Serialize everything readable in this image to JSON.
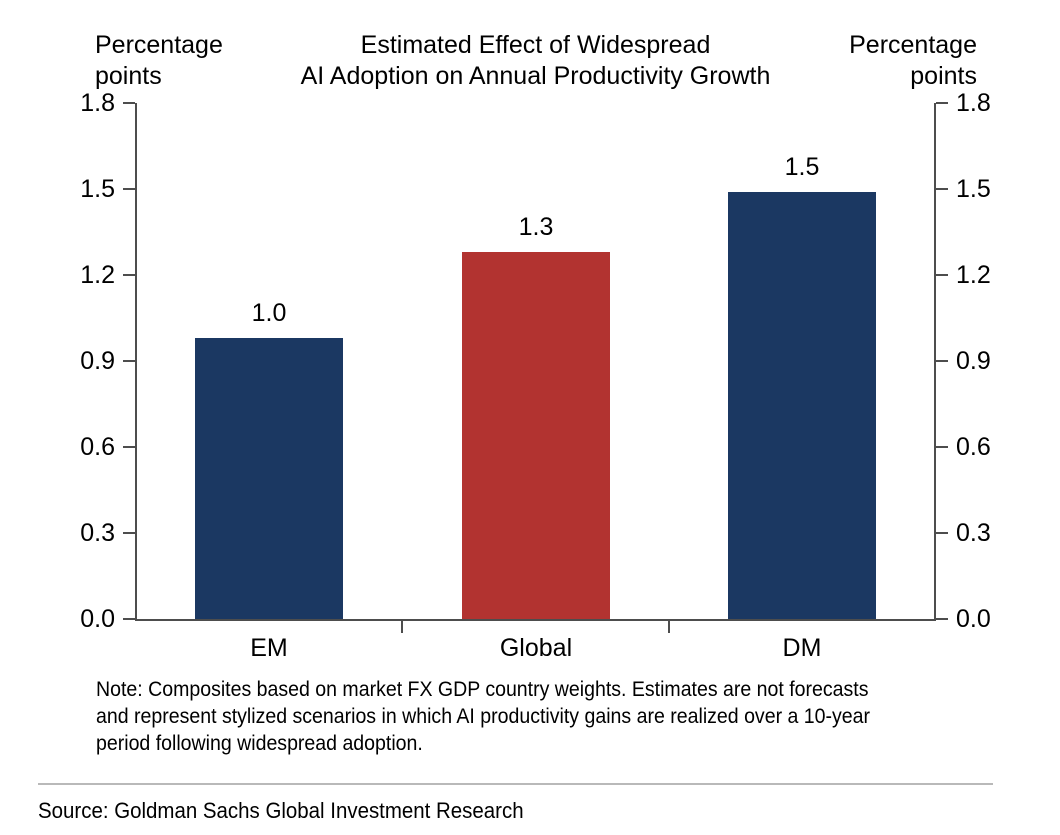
{
  "chart_data": {
    "type": "bar",
    "title": "Estimated Effect of Widespread AI Adoption on Annual Productivity Growth",
    "ylabel_left": "Percentage points",
    "ylabel_right": "Percentage points",
    "categories": [
      "EM",
      "Global",
      "DM"
    ],
    "values": [
      1.0,
      1.3,
      1.5
    ],
    "data_labels": [
      "1.0",
      "1.3",
      "1.5"
    ],
    "plotted_values": [
      0.98,
      1.28,
      1.49
    ],
    "bar_colors": [
      "#1b3862",
      "#b23330",
      "#1b3862"
    ],
    "ylim": [
      0,
      1.8
    ],
    "ytick_step": 0.3,
    "ytick_labels": [
      "0.0",
      "0.3",
      "0.6",
      "0.9",
      "1.2",
      "1.5",
      "1.8"
    ],
    "grid": false,
    "legend": "none",
    "axis_color": "#4d4d4d"
  },
  "header": {
    "title_line1": "Estimated Effect of Widespread",
    "title_line2": "AI Adoption on Annual Productivity Growth",
    "unit_left_line1": "Percentage",
    "unit_left_line2": "points",
    "unit_right_line1": "Percentage",
    "unit_right_line2": "points"
  },
  "footer": {
    "note_lines": [
      "Note: Composites based on market FX GDP country weights. Estimates are not forecasts",
      "and represent stylized scenarios in which AI productivity gains are realized over a 10-year",
      "period following widespread adoption."
    ],
    "source": "Source: Goldman Sachs Global Investment Research"
  }
}
